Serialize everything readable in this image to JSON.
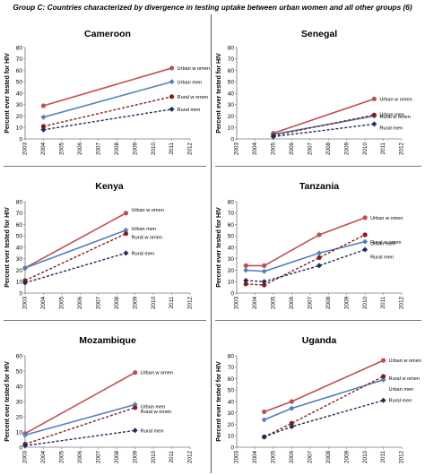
{
  "figure": {
    "title": "Group C: Countries characterized  by divergence in testing uptake between urban women and all other groups (6)"
  },
  "colors": {
    "urban_women": "#c0504d",
    "urban_men": "#4f81bd",
    "rural_women": "#8b1a1a",
    "rural_men": "#1f2d5a"
  },
  "chart_data": [
    {
      "type": "line",
      "title": "Cameroon",
      "ylabel": "Percent ever tested for HIV",
      "ylim": [
        0,
        80
      ],
      "yticks": [
        "0",
        "10",
        "20",
        "30",
        "40",
        "50",
        "60",
        "70",
        "80"
      ],
      "xlim": [
        2003,
        2012
      ],
      "xticks": [
        "2003",
        "2004",
        "2005",
        "2006",
        "2007",
        "2008",
        "2009",
        "2010",
        "2011",
        "2012"
      ],
      "series": [
        {
          "name": "Urban w omen",
          "x": [
            2004,
            2011
          ],
          "y": [
            29,
            62
          ]
        },
        {
          "name": "Urban men",
          "x": [
            2004,
            2011
          ],
          "y": [
            19,
            50
          ]
        },
        {
          "name": "Rural w omen",
          "x": [
            2004,
            2011
          ],
          "y": [
            11,
            37
          ]
        },
        {
          "name": "Rural men",
          "x": [
            2004,
            2011
          ],
          "y": [
            8,
            26
          ]
        }
      ]
    },
    {
      "type": "line",
      "title": "Senegal",
      "ylabel": "Percent ever tested for HIV",
      "ylim": [
        0,
        80
      ],
      "yticks": [
        "0",
        "10",
        "20",
        "30",
        "40",
        "50",
        "60",
        "70",
        "80"
      ],
      "xlim": [
        2003,
        2012
      ],
      "xticks": [
        "2003",
        "2004",
        "2005",
        "2006",
        "2007",
        "2008",
        "2009",
        "2010",
        "2011",
        "2012"
      ],
      "series": [
        {
          "name": "Urban w omen",
          "x": [
            2005,
            2010.5
          ],
          "y": [
            5,
            35
          ]
        },
        {
          "name": "Urban men",
          "x": [
            2005,
            2010.5
          ],
          "y": [
            4,
            20
          ]
        },
        {
          "name": "Rural w omen",
          "x": [
            2005,
            2010.5
          ],
          "y": [
            3,
            21
          ]
        },
        {
          "name": "Rural men",
          "x": [
            2005,
            2010.5
          ],
          "y": [
            2,
            13
          ]
        }
      ]
    },
    {
      "type": "line",
      "title": "Kenya",
      "ylabel": "Percent ever tested for HIV",
      "ylim": [
        0,
        80
      ],
      "yticks": [
        "0",
        "10",
        "20",
        "30",
        "40",
        "50",
        "60",
        "70",
        "80"
      ],
      "xlim": [
        2003,
        2012
      ],
      "xticks": [
        "2003",
        "2004",
        "2005",
        "2006",
        "2007",
        "2008",
        "2009",
        "2010",
        "2011",
        "2012"
      ],
      "series": [
        {
          "name": "Urban w omen",
          "x": [
            2003,
            2008.5
          ],
          "y": [
            22,
            70
          ]
        },
        {
          "name": "Urban men",
          "x": [
            2003,
            2008.5
          ],
          "y": [
            22,
            55
          ]
        },
        {
          "name": "Rural w omen",
          "x": [
            2003,
            2008.5
          ],
          "y": [
            11,
            52
          ]
        },
        {
          "name": "Rural men",
          "x": [
            2003,
            2008.5
          ],
          "y": [
            9,
            35
          ]
        }
      ]
    },
    {
      "type": "line",
      "title": "Tanzania",
      "ylabel": "Percent ever tested for HIV",
      "ylim": [
        0,
        80
      ],
      "yticks": [
        "0",
        "10",
        "20",
        "30",
        "40",
        "50",
        "60",
        "70",
        "80"
      ],
      "xlim": [
        2003,
        2012
      ],
      "xticks": [
        "2003",
        "2004",
        "2005",
        "2006",
        "2007",
        "2008",
        "2009",
        "2010",
        "2011",
        "2012"
      ],
      "series": [
        {
          "name": "Urban w omen",
          "x": [
            2003.5,
            2004.5,
            2007.5,
            2010
          ],
          "y": [
            24,
            24,
            51,
            66
          ]
        },
        {
          "name": "Urban men",
          "x": [
            2003.5,
            2004.5,
            2007.5,
            2010
          ],
          "y": [
            20,
            19,
            35,
            45
          ]
        },
        {
          "name": "Rural w omen",
          "x": [
            2003.5,
            2004.5,
            2007.5,
            2010
          ],
          "y": [
            8,
            7,
            31,
            51
          ]
        },
        {
          "name": "Rural men",
          "x": [
            2003.5,
            2004.5,
            2007.5,
            2010
          ],
          "y": [
            11,
            10,
            24,
            38
          ]
        }
      ]
    },
    {
      "type": "line",
      "title": "Mozambique",
      "ylabel": "Percent ever tested for HIV",
      "ylim": [
        0,
        60
      ],
      "yticks": [
        "0",
        "10",
        "20",
        "30",
        "40",
        "50",
        "60"
      ],
      "xlim": [
        2003,
        2012
      ],
      "xticks": [
        "2003",
        "2004",
        "2005",
        "2006",
        "2007",
        "2008",
        "2009",
        "2010",
        "2011",
        "2012"
      ],
      "series": [
        {
          "name": "Urban w omen",
          "x": [
            2003,
            2009
          ],
          "y": [
            9,
            49
          ]
        },
        {
          "name": "Urban men",
          "x": [
            2003,
            2009
          ],
          "y": [
            8,
            28
          ]
        },
        {
          "name": "Rural w omen",
          "x": [
            2003,
            2009
          ],
          "y": [
            2,
            26
          ]
        },
        {
          "name": "Rural men",
          "x": [
            2003,
            2009
          ],
          "y": [
            1,
            11
          ]
        }
      ]
    },
    {
      "type": "line",
      "title": "Uganda",
      "ylabel": "Percent ever tested for HIV",
      "ylim": [
        0,
        80
      ],
      "yticks": [
        "0",
        "10",
        "20",
        "30",
        "40",
        "50",
        "60",
        "70",
        "80"
      ],
      "xlim": [
        2003,
        2012
      ],
      "xticks": [
        "2003",
        "2004",
        "2005",
        "2006",
        "2007",
        "2008",
        "2009",
        "2010",
        "2011",
        "2012"
      ],
      "series": [
        {
          "name": "Urban w omen",
          "x": [
            2004.5,
            2006,
            2011
          ],
          "y": [
            31,
            40,
            76
          ]
        },
        {
          "name": "Urban men",
          "x": [
            2004.5,
            2006,
            2011
          ],
          "y": [
            24,
            34,
            59
          ]
        },
        {
          "name": "Rural w omen",
          "x": [
            2004.5,
            2006,
            2011
          ],
          "y": [
            9,
            21,
            62
          ]
        },
        {
          "name": "Rural men",
          "x": [
            2004.5,
            2006,
            2011
          ],
          "y": [
            9,
            18,
            41
          ]
        }
      ]
    }
  ]
}
